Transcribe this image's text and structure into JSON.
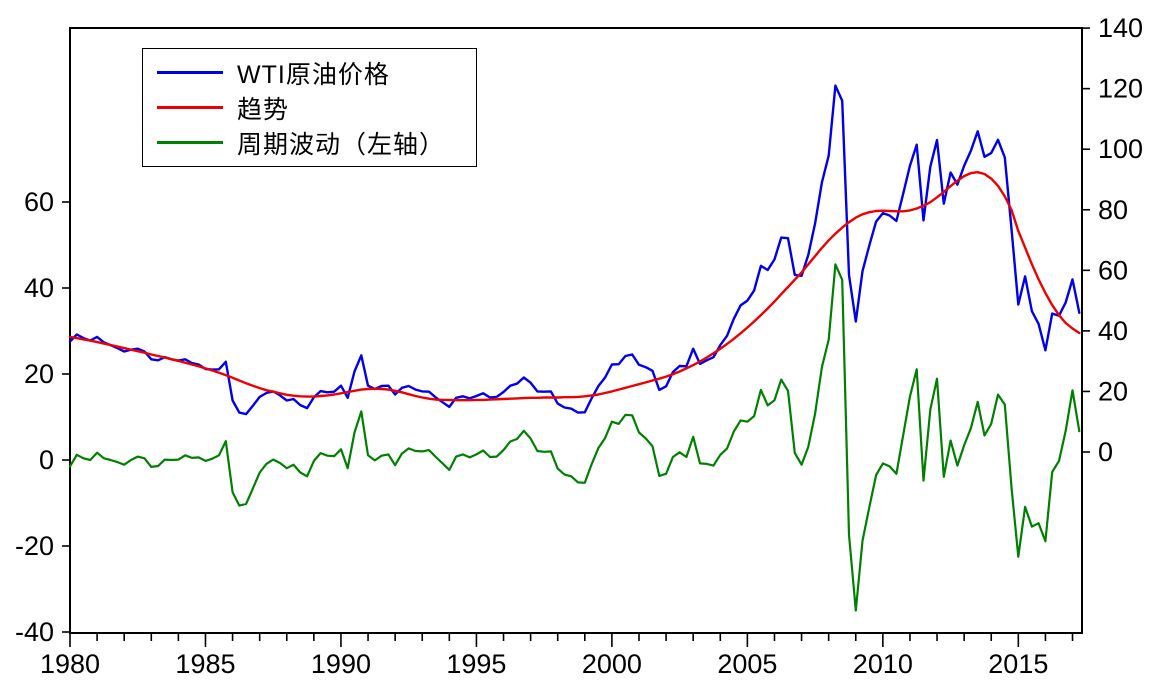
{
  "legend": {
    "items": [
      {
        "label": "WTI原油价格",
        "color": "#0000ee"
      },
      {
        "label": "趋势",
        "color": "#ee0000"
      },
      {
        "label": "周期波动（左轴）",
        "color": "#008000"
      }
    ]
  },
  "axes": {
    "left_tick_labels": [
      "-40",
      "-20",
      "0",
      "20",
      "40",
      "60"
    ],
    "right_tick_labels": [
      "0",
      "20",
      "40",
      "60",
      "80",
      "100",
      "120",
      "140"
    ],
    "x_tick_labels": [
      "1980",
      "1985",
      "1990",
      "1995",
      "2000",
      "2005",
      "2010",
      "2015"
    ]
  },
  "chart_data": {
    "type": "line",
    "title": "",
    "xlabel": "",
    "ylabel_left": "",
    "ylabel_right": "",
    "frequency": "quarterly",
    "x_start": 1980.0,
    "x_step": 0.25,
    "x_range": [
      1980.0,
      2017.35
    ],
    "left_axis": {
      "ticks": [
        -40,
        -20,
        0,
        20,
        40,
        60
      ],
      "range_at_plot_edges": [
        -40.2,
        100.5
      ],
      "grid": false
    },
    "right_axis": {
      "ticks": [
        0,
        20,
        40,
        60,
        80,
        100,
        120,
        140
      ],
      "range_at_plot_edges": [
        -59.8,
        140.0
      ],
      "grid": false
    },
    "x_ticks_major": [
      1980,
      1985,
      1990,
      1995,
      2000,
      2005,
      2010,
      2015
    ],
    "x_ticks_minor_every": 1,
    "legend_position": "top-left-inside",
    "series": [
      {
        "name": "WTI原油价格",
        "axis": "right",
        "color": "#0000ee",
        "width": 2.4,
        "values": [
          36.5,
          38.8,
          37.6,
          36.8,
          38.0,
          36.2,
          35.3,
          34.3,
          33.2,
          33.8,
          34.1,
          33.2,
          30.6,
          30.3,
          31.3,
          30.6,
          30.2,
          30.6,
          29.4,
          28.9,
          27.4,
          27.2,
          27.3,
          29.8,
          17.0,
          13.0,
          12.5,
          15.3,
          18.2,
          19.5,
          20.0,
          18.7,
          17.0,
          17.5,
          15.5,
          14.5,
          18.1,
          20.1,
          19.7,
          19.9,
          21.9,
          17.9,
          26.6,
          31.9,
          21.9,
          20.8,
          21.8,
          21.9,
          19.0,
          21.2,
          21.8,
          20.6,
          20.0,
          19.9,
          18.0,
          16.4,
          14.9,
          17.9,
          18.4,
          17.7,
          18.5,
          19.4,
          18.0,
          18.2,
          19.8,
          21.9,
          22.6,
          24.6,
          22.9,
          20.0,
          19.9,
          20.0,
          16.0,
          14.7,
          14.3,
          13.0,
          13.1,
          17.7,
          21.8,
          24.6,
          28.9,
          29.0,
          31.7,
          32.2,
          28.8,
          28.0,
          26.8,
          20.5,
          21.7,
          26.4,
          28.4,
          28.3,
          34.1,
          29.1,
          30.3,
          31.3,
          35.3,
          38.4,
          44.0,
          48.4,
          50.0,
          53.3,
          61.5,
          60.1,
          63.6,
          70.8,
          70.6,
          58.5,
          58.2,
          65.1,
          75.5,
          89.0,
          97.9,
          121.0,
          116.0,
          58.5,
          43.1,
          59.7,
          68.2,
          76.1,
          78.9,
          78.1,
          76.3,
          85.3,
          94.5,
          101.5,
          76.5,
          94.2,
          103.0,
          82.0,
          92.3,
          88.3,
          94.5,
          99.5,
          105.9,
          97.5,
          98.7,
          103.1,
          97.3,
          73.3,
          48.7,
          58.0,
          46.5,
          42.3,
          33.6,
          45.7,
          45.0,
          49.4,
          57.0,
          46.0
        ]
      },
      {
        "name": "趋势",
        "axis": "right",
        "color": "#ee0000",
        "width": 2.4,
        "values": [
          38.0,
          37.6,
          37.2,
          36.8,
          36.3,
          35.8,
          35.3,
          34.8,
          34.3,
          33.8,
          33.3,
          32.8,
          32.2,
          31.7,
          31.2,
          30.6,
          30.1,
          29.5,
          28.9,
          28.3,
          27.6,
          26.9,
          26.2,
          25.4,
          24.5,
          23.6,
          22.7,
          21.9,
          21.1,
          20.4,
          19.9,
          19.4,
          18.9,
          18.6,
          18.4,
          18.3,
          18.3,
          18.5,
          18.7,
          19.0,
          19.4,
          19.8,
          20.2,
          20.6,
          20.8,
          20.9,
          20.8,
          20.6,
          20.2,
          19.7,
          19.1,
          18.5,
          18.0,
          17.6,
          17.3,
          17.2,
          17.2,
          17.1,
          17.1,
          17.1,
          17.2,
          17.2,
          17.3,
          17.4,
          17.5,
          17.6,
          17.7,
          17.8,
          17.9,
          17.9,
          18.0,
          18.0,
          18.0,
          18.1,
          18.1,
          18.2,
          18.4,
          18.7,
          19.0,
          19.5,
          20.0,
          20.6,
          21.2,
          21.8,
          22.4,
          23.0,
          23.6,
          24.2,
          24.9,
          25.7,
          26.6,
          27.6,
          28.7,
          29.9,
          31.2,
          32.6,
          34.1,
          35.7,
          37.4,
          39.2,
          41.1,
          43.1,
          45.2,
          47.4,
          49.7,
          52.1,
          54.5,
          56.9,
          59.3,
          62.0,
          64.7,
          67.4,
          69.9,
          72.1,
          74.1,
          75.9,
          77.4,
          78.5,
          79.2,
          79.6,
          79.7,
          79.6,
          79.5,
          79.5,
          79.8,
          80.4,
          81.3,
          82.5,
          84.1,
          85.9,
          87.8,
          89.6,
          91.1,
          92.1,
          92.4,
          91.8,
          90.3,
          87.9,
          84.4,
          79.9,
          73.0,
          67.5,
          62.0,
          57.0,
          52.5,
          48.5,
          45.2,
          42.6,
          40.8,
          39.3
        ]
      },
      {
        "name": "周期波动（左轴）",
        "axis": "left",
        "color": "#008000",
        "width": 2.2,
        "values": [
          -1.5,
          1.2,
          0.4,
          0.0,
          1.7,
          0.4,
          0.0,
          -0.5,
          -1.1,
          0.0,
          0.8,
          0.4,
          -1.6,
          -1.4,
          0.1,
          0.0,
          0.1,
          1.1,
          0.5,
          0.6,
          -0.2,
          0.3,
          1.1,
          4.4,
          -7.5,
          -10.6,
          -10.2,
          -6.6,
          -2.9,
          -0.9,
          0.1,
          -0.7,
          -1.9,
          -1.1,
          -2.9,
          -3.8,
          -0.2,
          1.6,
          1.0,
          0.9,
          2.5,
          -1.9,
          6.4,
          11.3,
          1.1,
          -0.1,
          1.0,
          1.3,
          -1.2,
          1.5,
          2.7,
          2.1,
          2.0,
          2.3,
          0.7,
          -0.8,
          -2.3,
          0.8,
          1.3,
          0.6,
          1.3,
          2.2,
          0.7,
          0.8,
          2.3,
          4.3,
          4.9,
          6.8,
          5.0,
          2.1,
          1.9,
          2.0,
          -2.0,
          -3.4,
          -3.8,
          -5.2,
          -5.3,
          -1.0,
          2.8,
          5.1,
          8.9,
          8.4,
          10.5,
          10.4,
          6.4,
          5.0,
          3.2,
          -3.7,
          -3.2,
          0.7,
          1.8,
          0.7,
          5.4,
          -0.8,
          -0.9,
          -1.3,
          1.2,
          2.7,
          6.6,
          9.2,
          8.9,
          10.2,
          16.3,
          12.7,
          13.9,
          18.7,
          16.1,
          1.6,
          -1.1,
          3.1,
          10.8,
          21.6,
          28.0,
          45.5,
          41.9,
          -17.4,
          -35.0,
          -18.8,
          -11.0,
          -3.5,
          -0.8,
          -1.5,
          -3.2,
          5.8,
          14.7,
          21.1,
          -4.8,
          11.7,
          18.9,
          -3.9,
          4.5,
          -1.3,
          3.4,
          7.4,
          13.5,
          5.7,
          8.4,
          15.2,
          12.9,
          -6.6,
          -22.5,
          -10.9,
          -15.5,
          -14.7,
          -18.9,
          -2.8,
          -0.2,
          6.8,
          16.2,
          6.7
        ]
      }
    ]
  }
}
